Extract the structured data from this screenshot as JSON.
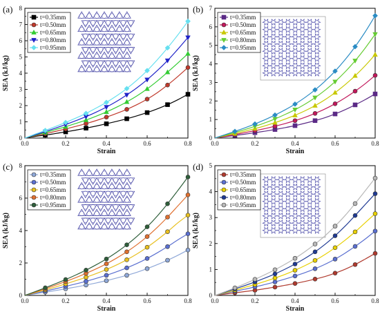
{
  "chart_data": [
    {
      "type": "line",
      "panel_label": "(a)",
      "xlabel": "Strain",
      "ylabel": "SEA (kJ/kg)",
      "xlim": [
        0,
        0.8
      ],
      "ylim": [
        0,
        8
      ],
      "xticks": [
        0.0,
        0.2,
        0.4,
        0.6,
        0.8
      ],
      "yticks": [
        0,
        1,
        2,
        3,
        4,
        5,
        6,
        7,
        8
      ],
      "xtick_labels": [
        "0.0",
        "0.2",
        "0.4",
        "0.6",
        "0.8"
      ],
      "ytick_labels": [
        "0",
        "1",
        "2",
        "3",
        "4",
        "5",
        "6",
        "7",
        "8"
      ],
      "legend_position": "top-left",
      "inset_pattern": "kagome",
      "x": [
        0,
        0.05,
        0.1,
        0.15,
        0.2,
        0.25,
        0.3,
        0.35,
        0.4,
        0.45,
        0.5,
        0.55,
        0.6,
        0.65,
        0.7,
        0.75,
        0.8
      ],
      "series": [
        {
          "name": "t=0.35mm",
          "color": "#000000",
          "marker": "square",
          "values": [
            0,
            0.1,
            0.18,
            0.28,
            0.38,
            0.49,
            0.61,
            0.74,
            0.88,
            1.03,
            1.19,
            1.37,
            1.57,
            1.8,
            2.06,
            2.36,
            2.7
          ]
        },
        {
          "name": "t=0.50mm",
          "color": "#c0392b",
          "marker": "circle",
          "values": [
            0,
            0.14,
            0.27,
            0.41,
            0.56,
            0.72,
            0.89,
            1.08,
            1.29,
            1.52,
            1.77,
            2.06,
            2.4,
            2.8,
            3.27,
            3.79,
            4.35
          ]
        },
        {
          "name": "t=0.65mm",
          "color": "#33cc33",
          "marker": "triangle-up",
          "values": [
            0,
            0.17,
            0.34,
            0.52,
            0.7,
            0.9,
            1.11,
            1.35,
            1.61,
            1.9,
            2.23,
            2.6,
            3.03,
            3.52,
            4.06,
            4.62,
            5.2
          ]
        },
        {
          "name": "t=0.80mm",
          "color": "#1f22c8",
          "marker": "triangle-down",
          "values": [
            0,
            0.2,
            0.4,
            0.61,
            0.83,
            1.07,
            1.32,
            1.6,
            1.91,
            2.26,
            2.66,
            3.1,
            3.6,
            4.16,
            4.78,
            5.47,
            6.2
          ]
        },
        {
          "name": "t=0.95mm",
          "color": "#66e0f0",
          "marker": "diamond",
          "values": [
            0,
            0.24,
            0.47,
            0.71,
            0.96,
            1.23,
            1.52,
            1.85,
            2.2,
            2.6,
            3.05,
            3.57,
            4.16,
            4.83,
            5.56,
            6.35,
            7.2
          ]
        }
      ]
    },
    {
      "type": "line",
      "panel_label": "(b)",
      "xlabel": "Strain",
      "ylabel": "SEA (kJ/kg)",
      "xlim": [
        0,
        0.8
      ],
      "ylim": [
        0,
        7
      ],
      "xticks": [
        0.0,
        0.2,
        0.4,
        0.6,
        0.8
      ],
      "yticks": [
        0,
        1,
        2,
        3,
        4,
        5,
        6,
        7
      ],
      "xtick_labels": [
        "0.0",
        "0.2",
        "0.4",
        "0.6",
        "0.8"
      ],
      "ytick_labels": [
        "0",
        "1",
        "2",
        "3",
        "4",
        "5",
        "6",
        "7"
      ],
      "legend_position": "top-left",
      "inset_pattern": "star",
      "x": [
        0,
        0.05,
        0.1,
        0.15,
        0.2,
        0.25,
        0.3,
        0.35,
        0.4,
        0.45,
        0.5,
        0.55,
        0.6,
        0.65,
        0.7,
        0.75,
        0.8
      ],
      "series": [
        {
          "name": "t=0.35mm",
          "color": "#5b2a86",
          "marker": "square",
          "values": [
            0,
            0.07,
            0.14,
            0.21,
            0.29,
            0.37,
            0.46,
            0.56,
            0.67,
            0.8,
            0.94,
            1.1,
            1.3,
            1.53,
            1.79,
            2.07,
            2.38
          ]
        },
        {
          "name": "t=0.50mm",
          "color": "#c2185b",
          "marker": "circle",
          "values": [
            0,
            0.09,
            0.19,
            0.29,
            0.4,
            0.51,
            0.64,
            0.78,
            0.94,
            1.12,
            1.33,
            1.57,
            1.85,
            2.17,
            2.53,
            2.93,
            3.38
          ]
        },
        {
          "name": "t=0.65mm",
          "color": "#c8c800",
          "marker": "triangle-up",
          "values": [
            0,
            0.12,
            0.24,
            0.37,
            0.51,
            0.66,
            0.83,
            1.02,
            1.23,
            1.47,
            1.75,
            2.07,
            2.45,
            2.88,
            3.36,
            3.9,
            4.5
          ]
        },
        {
          "name": "t=0.80mm",
          "color": "#66cc33",
          "marker": "triangle-down",
          "values": [
            0,
            0.15,
            0.3,
            0.46,
            0.63,
            0.82,
            1.03,
            1.27,
            1.53,
            1.83,
            2.18,
            2.58,
            3.04,
            3.57,
            4.17,
            4.85,
            5.6
          ]
        },
        {
          "name": "t=0.95mm",
          "color": "#2b8cc4",
          "marker": "diamond",
          "values": [
            0,
            0.18,
            0.36,
            0.55,
            0.76,
            0.99,
            1.24,
            1.52,
            1.83,
            2.19,
            2.6,
            3.07,
            3.61,
            4.23,
            4.93,
            5.72,
            6.6
          ]
        }
      ]
    },
    {
      "type": "line",
      "panel_label": "(c)",
      "xlabel": "Strain",
      "ylabel": "SEA (kJ/kg)",
      "xlim": [
        0,
        0.8
      ],
      "ylim": [
        0,
        8
      ],
      "xticks": [
        0.0,
        0.2,
        0.4,
        0.6,
        0.8
      ],
      "yticks": [
        0,
        2,
        4,
        6,
        8
      ],
      "xtick_labels": [
        "0.0",
        "0.2",
        "0.4",
        "0.6",
        "0.8"
      ],
      "ytick_labels": [
        "0",
        "2",
        "4",
        "6",
        "8"
      ],
      "legend_position": "top-left",
      "inset_pattern": "kagome",
      "x": [
        0,
        0.05,
        0.1,
        0.15,
        0.2,
        0.25,
        0.3,
        0.35,
        0.4,
        0.45,
        0.5,
        0.55,
        0.6,
        0.65,
        0.7,
        0.75,
        0.8
      ],
      "series": [
        {
          "name": "t=0.35mm",
          "color": "#8fa8d8",
          "marker": "circle",
          "values": [
            0,
            0.1,
            0.2,
            0.3,
            0.41,
            0.52,
            0.64,
            0.77,
            0.91,
            1.07,
            1.24,
            1.43,
            1.65,
            1.9,
            2.17,
            2.47,
            2.8
          ]
        },
        {
          "name": "t=0.50mm",
          "color": "#5a6fd0",
          "marker": "circle",
          "values": [
            0,
            0.13,
            0.27,
            0.41,
            0.56,
            0.71,
            0.87,
            1.05,
            1.24,
            1.46,
            1.7,
            1.97,
            2.28,
            2.63,
            3.01,
            3.42,
            3.8
          ]
        },
        {
          "name": "t=0.65mm",
          "color": "#e8c020",
          "marker": "circle",
          "values": [
            0,
            0.17,
            0.34,
            0.52,
            0.71,
            0.91,
            1.12,
            1.35,
            1.6,
            1.88,
            2.2,
            2.56,
            2.97,
            3.43,
            3.93,
            4.47,
            4.95
          ]
        },
        {
          "name": "t=0.80mm",
          "color": "#e07030",
          "marker": "circle",
          "values": [
            0,
            0.2,
            0.41,
            0.63,
            0.86,
            1.1,
            1.36,
            1.64,
            1.95,
            2.3,
            2.69,
            3.13,
            3.63,
            4.2,
            4.83,
            5.51,
            6.2
          ]
        },
        {
          "name": "t=0.95mm",
          "color": "#2e5e3a",
          "marker": "circle",
          "values": [
            0,
            0.23,
            0.47,
            0.72,
            0.98,
            1.26,
            1.56,
            1.89,
            2.25,
            2.66,
            3.12,
            3.64,
            4.23,
            4.9,
            5.65,
            6.46,
            7.3
          ]
        }
      ]
    },
    {
      "type": "line",
      "panel_label": "(d)",
      "xlabel": "Strain",
      "ylabel": "SEA (kJ/kg)",
      "xlim": [
        0,
        0.8
      ],
      "ylim": [
        0,
        5
      ],
      "xticks": [
        0.0,
        0.2,
        0.4,
        0.6,
        0.8
      ],
      "yticks": [
        0,
        1,
        2,
        3,
        4,
        5
      ],
      "xtick_labels": [
        "0.0",
        "0.2",
        "0.4",
        "0.6",
        "0.8"
      ],
      "ytick_labels": [
        "0",
        "1",
        "2",
        "3",
        "4",
        "5"
      ],
      "legend_position": "top-left",
      "inset_pattern": "star",
      "x": [
        0,
        0.05,
        0.1,
        0.15,
        0.2,
        0.25,
        0.3,
        0.35,
        0.4,
        0.45,
        0.5,
        0.55,
        0.6,
        0.65,
        0.7,
        0.75,
        0.8
      ],
      "series": [
        {
          "name": "t=0.35mm",
          "color": "#b03a2e",
          "marker": "circle",
          "values": [
            0,
            0.05,
            0.1,
            0.15,
            0.2,
            0.26,
            0.32,
            0.39,
            0.46,
            0.54,
            0.63,
            0.73,
            0.86,
            1.01,
            1.19,
            1.4,
            1.62
          ]
        },
        {
          "name": "t=0.50mm",
          "color": "#5a6fd0",
          "marker": "circle",
          "values": [
            0,
            0.08,
            0.16,
            0.24,
            0.33,
            0.42,
            0.52,
            0.63,
            0.75,
            0.88,
            1.03,
            1.2,
            1.4,
            1.63,
            1.89,
            2.17,
            2.48
          ]
        },
        {
          "name": "t=0.65mm",
          "color": "#e8d000",
          "marker": "circle",
          "values": [
            0,
            0.1,
            0.2,
            0.31,
            0.42,
            0.54,
            0.67,
            0.81,
            0.97,
            1.15,
            1.35,
            1.58,
            1.84,
            2.13,
            2.45,
            2.8,
            3.15
          ]
        },
        {
          "name": "t=0.80mm",
          "color": "#1f3a93",
          "marker": "circle",
          "values": [
            0,
            0.12,
            0.25,
            0.38,
            0.52,
            0.67,
            0.83,
            1.01,
            1.21,
            1.43,
            1.68,
            1.97,
            2.3,
            2.67,
            3.08,
            3.5,
            3.92
          ]
        },
        {
          "name": "t=0.95mm",
          "color": "#b8b8b8",
          "marker": "circle",
          "values": [
            0,
            0.14,
            0.29,
            0.45,
            0.62,
            0.8,
            0.99,
            1.2,
            1.43,
            1.69,
            1.98,
            2.3,
            2.67,
            3.08,
            3.54,
            4.03,
            4.52
          ]
        }
      ]
    }
  ]
}
